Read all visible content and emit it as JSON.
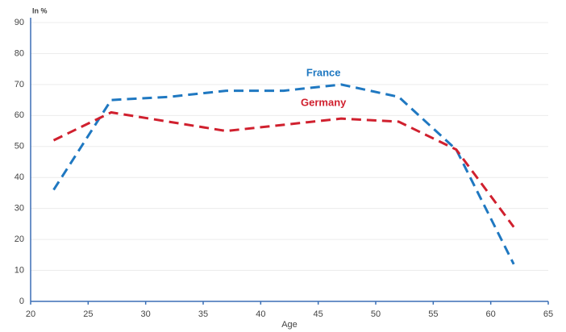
{
  "chart_data": {
    "type": "line",
    "y_label": "In %",
    "x_label": "Age",
    "x": [
      22,
      27,
      32,
      37,
      42,
      47,
      52,
      57,
      62
    ],
    "series": [
      {
        "name": "France",
        "color": "#1f78c1",
        "values": [
          36,
          65,
          66,
          68,
          68,
          70,
          66,
          49,
          12
        ]
      },
      {
        "name": "Germany",
        "color": "#d0202e",
        "values": [
          52,
          61,
          58,
          55,
          57,
          59,
          58,
          49,
          24
        ]
      }
    ],
    "xlim": [
      20,
      65
    ],
    "xticks": [
      20,
      25,
      30,
      35,
      40,
      45,
      50,
      55,
      60,
      65
    ],
    "ylim": [
      0,
      90
    ],
    "yticks": [
      0,
      10,
      20,
      30,
      40,
      50,
      60,
      70,
      80,
      90
    ],
    "grid": true,
    "dashed": true
  }
}
